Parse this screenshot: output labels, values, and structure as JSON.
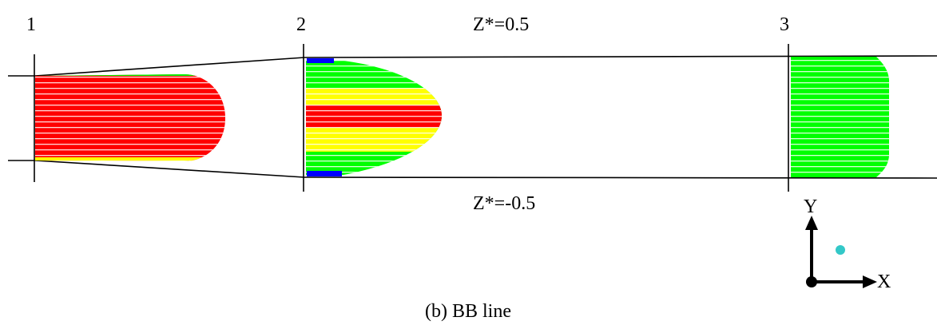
{
  "figure": {
    "section_labels": [
      "1",
      "2",
      "3"
    ],
    "z_top_label": "Z*=0.5",
    "z_bottom_label": "Z*=-0.5",
    "axis_y_label": "Y",
    "axis_x_label": "X",
    "caption": "(b) BB line"
  },
  "colors": {
    "red": "#ff0000",
    "yellow": "#ffff00",
    "green": "#00ff00",
    "blue": "#0000ff",
    "cyan_dot": "#33c8c8",
    "line": "#000000"
  }
}
